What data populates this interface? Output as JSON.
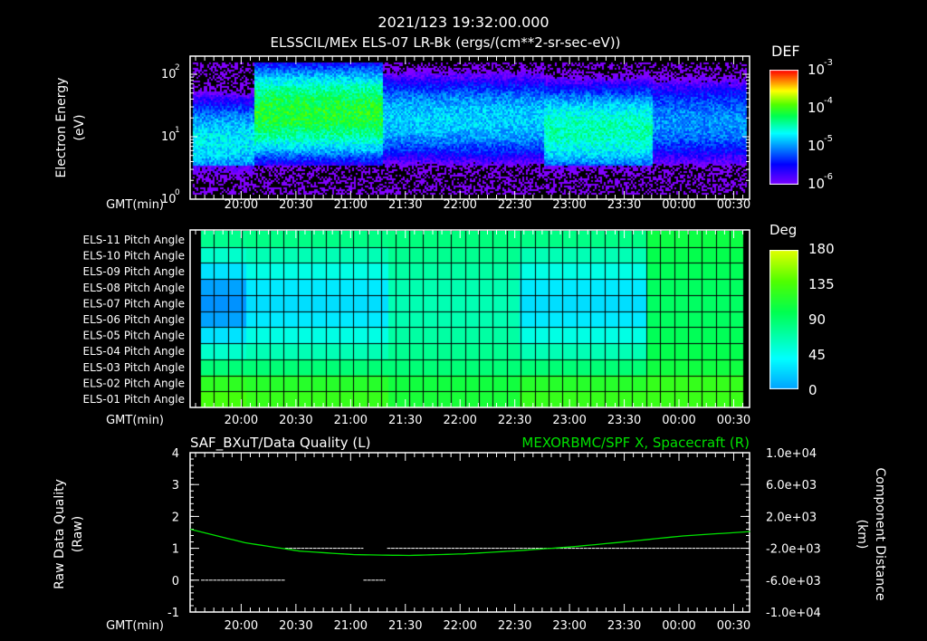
{
  "header": {
    "timestamp": "2021/123 19:32:00.000",
    "title": "ELSSCIL/MEx ELS-07 LR-Bk  (ergs/(cm**2-sr-sec-eV))"
  },
  "time_axis": {
    "label": "GMT(min)",
    "start": "19:32",
    "end": "00:39",
    "ticks": [
      "20:00",
      "20:30",
      "21:00",
      "21:30",
      "22:00",
      "22:30",
      "23:00",
      "23:30",
      "00:00",
      "00:30"
    ]
  },
  "chart_data": [
    {
      "type": "heatmap",
      "name": "energy-spectrogram",
      "ylabel": "Electron Energy",
      "yunit": "(eV)",
      "yscale": "log",
      "ylim": [
        1,
        190
      ],
      "yticks": [
        {
          "base": "10",
          "exp": "0"
        },
        {
          "base": "10",
          "exp": "1"
        },
        {
          "base": "10",
          "exp": "2"
        }
      ],
      "colorbar": {
        "label": "DEF",
        "ticks": [
          {
            "base": "10",
            "exp": "-3"
          },
          {
            "base": "10",
            "exp": "-4"
          },
          {
            "base": "10",
            "exp": "-5"
          },
          {
            "base": "10",
            "exp": "-6"
          }
        ],
        "range_log": [
          -6,
          -3
        ]
      },
      "segments": [
        {
          "from_min": 0,
          "to_min": 34,
          "center_log_eV": 0.95,
          "peak_log_def": -4.7
        },
        {
          "from_min": 34,
          "to_min": 105,
          "center_log_eV": 1.4,
          "peak_log_def": -4.1
        },
        {
          "from_min": 105,
          "to_min": 193,
          "center_log_eV": 1.3,
          "peak_log_def": -4.8
        },
        {
          "from_min": 193,
          "to_min": 253,
          "center_log_eV": 1.12,
          "peak_log_def": -4.45
        },
        {
          "from_min": 253,
          "to_min": 307,
          "center_log_eV": 1.25,
          "peak_log_def": -5.0
        }
      ]
    },
    {
      "type": "heatmap",
      "name": "pitch-angle",
      "rows": [
        "ELS-11 Pitch Angle",
        "ELS-10 Pitch Angle",
        "ELS-09 Pitch Angle",
        "ELS-08 Pitch Angle",
        "ELS-07 Pitch Angle",
        "ELS-06 Pitch Angle",
        "ELS-05 Pitch Angle",
        "ELS-04 Pitch Angle",
        "ELS-03 Pitch Angle",
        "ELS-02 Pitch Angle",
        "ELS-01 Pitch Angle"
      ],
      "row_profile": [
        0.15,
        0.45,
        0.75,
        0.95,
        1.0,
        0.95,
        0.75,
        0.45,
        0.05,
        -0.25,
        -0.4
      ],
      "colorbar": {
        "label": "Deg",
        "ticks": [
          "180",
          "135",
          "90",
          "45",
          "0"
        ],
        "range": [
          0,
          180
        ]
      },
      "segments": [
        {
          "from_min": 5,
          "to_min": 30,
          "base_deg": 90,
          "depth_deg": 72
        },
        {
          "from_min": 30,
          "to_min": 108,
          "base_deg": 90,
          "depth_deg": 55
        },
        {
          "from_min": 108,
          "to_min": 180,
          "base_deg": 88,
          "depth_deg": 22
        },
        {
          "from_min": 180,
          "to_min": 250,
          "base_deg": 90,
          "depth_deg": 55
        },
        {
          "from_min": 250,
          "to_min": 302,
          "base_deg": 108,
          "depth_deg": 14
        }
      ]
    },
    {
      "type": "line",
      "name": "quality-and-position",
      "left_title": "SAF_BXuT/Data Quality (L)",
      "right_title": "MEXORBMC/SPF X, Spacecraft (R)",
      "ylabel_left": "Raw Data Quality",
      "yunit_left": "(Raw)",
      "ylabel_right": "Component Distance",
      "yunit_right": "(km)",
      "ylim_left": [
        -1,
        4
      ],
      "yticks_left": [
        "4",
        "3",
        "2",
        "1",
        "0",
        "-1"
      ],
      "ylim_right": [
        -10000,
        10000
      ],
      "yticks_right": [
        "1.0e+04",
        "6.0e+03",
        "2.0e+03",
        "-2.0e+03",
        "-6.0e+03",
        "-1.0e+04"
      ],
      "quality_segments": [
        {
          "from_min": 6,
          "to_min": 52,
          "value": 0
        },
        {
          "from_min": 52,
          "to_min": 95,
          "value": 1
        },
        {
          "from_min": 95,
          "to_min": 107,
          "value": 0
        },
        {
          "from_min": 108,
          "to_min": 302,
          "value": 1
        }
      ],
      "spacecraft_x_km": {
        "x_min": [
          0,
          30,
          60,
          90,
          120,
          150,
          180,
          210,
          240,
          270,
          307
        ],
        "y": [
          400,
          -1300,
          -2350,
          -2800,
          -2900,
          -2700,
          -2300,
          -1800,
          -1150,
          -450,
          100
        ]
      },
      "line_color": "#00e000"
    }
  ]
}
